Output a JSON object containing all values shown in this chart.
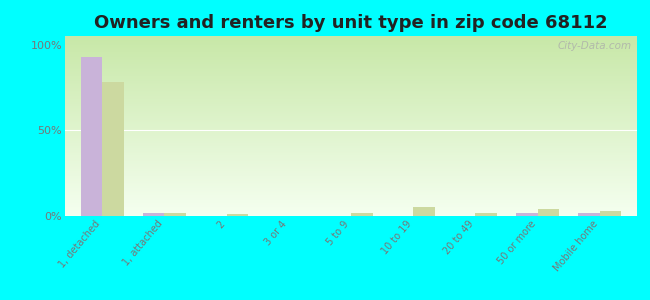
{
  "title": "Owners and renters by unit type in zip code 68112",
  "categories": [
    "1, detached",
    "1, attached",
    "2",
    "3 or 4",
    "5 to 9",
    "10 to 19",
    "20 to 49",
    "50 or more",
    "Mobile home"
  ],
  "owner_values": [
    93,
    2,
    0,
    0,
    0,
    0,
    0,
    2,
    2
  ],
  "renter_values": [
    78,
    2,
    1,
    0,
    2,
    5,
    2,
    4,
    3
  ],
  "owner_color": "#c9b3d9",
  "renter_color": "#ccd9a0",
  "background_color": "#00ffff",
  "grad_top": "#f5fff0",
  "grad_bottom": "#c8e8a8",
  "ylabel_ticks": [
    "0%",
    "50%",
    "100%"
  ],
  "ytick_vals": [
    0,
    50,
    100
  ],
  "ylim": [
    0,
    105
  ],
  "bar_width": 0.35,
  "watermark": "City-Data.com",
  "title_fontsize": 13,
  "tick_fontsize": 7,
  "legend_fontsize": 9,
  "label_color": "#777777"
}
